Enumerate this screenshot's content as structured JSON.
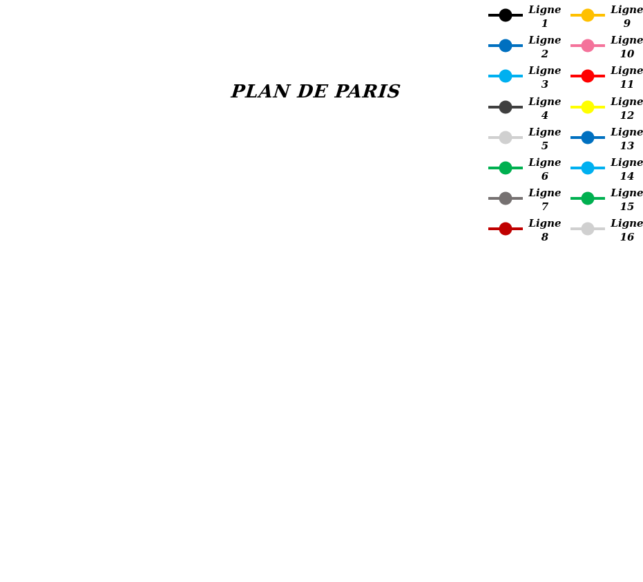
{
  "title": "PLAN DE PARIS",
  "legend": {
    "items": [
      {
        "word": "Ligne",
        "num": "1",
        "color": "#000000"
      },
      {
        "word": "Ligne",
        "num": "2",
        "color": "#0070C0"
      },
      {
        "word": "Ligne",
        "num": "3",
        "color": "#00B0F0"
      },
      {
        "word": "Ligne",
        "num": "4",
        "color": "#404040"
      },
      {
        "word": "Ligne",
        "num": "5",
        "color": "#D0D0D0"
      },
      {
        "word": "Ligne",
        "num": "6",
        "color": "#00B050"
      },
      {
        "word": "Ligne",
        "num": "7",
        "color": "#767171"
      },
      {
        "word": "Ligne",
        "num": "8",
        "color": "#C00000"
      },
      {
        "word": "Ligne",
        "num": "9",
        "color": "#FFC000"
      },
      {
        "word": "Ligne",
        "num": "10",
        "color": "#F4739B"
      },
      {
        "word": "Ligne",
        "num": "11",
        "color": "#FF0000"
      },
      {
        "word": "Ligne",
        "num": "12",
        "color": "#FFFF00"
      },
      {
        "word": "Ligne",
        "num": "13",
        "color": "#0070C0"
      },
      {
        "word": "Ligne",
        "num": "14",
        "color": "#00B0F0"
      },
      {
        "word": "Ligne",
        "num": "15",
        "color": "#00B050"
      },
      {
        "word": "Ligne",
        "num": "16",
        "color": "#D0D0D0"
      }
    ]
  }
}
